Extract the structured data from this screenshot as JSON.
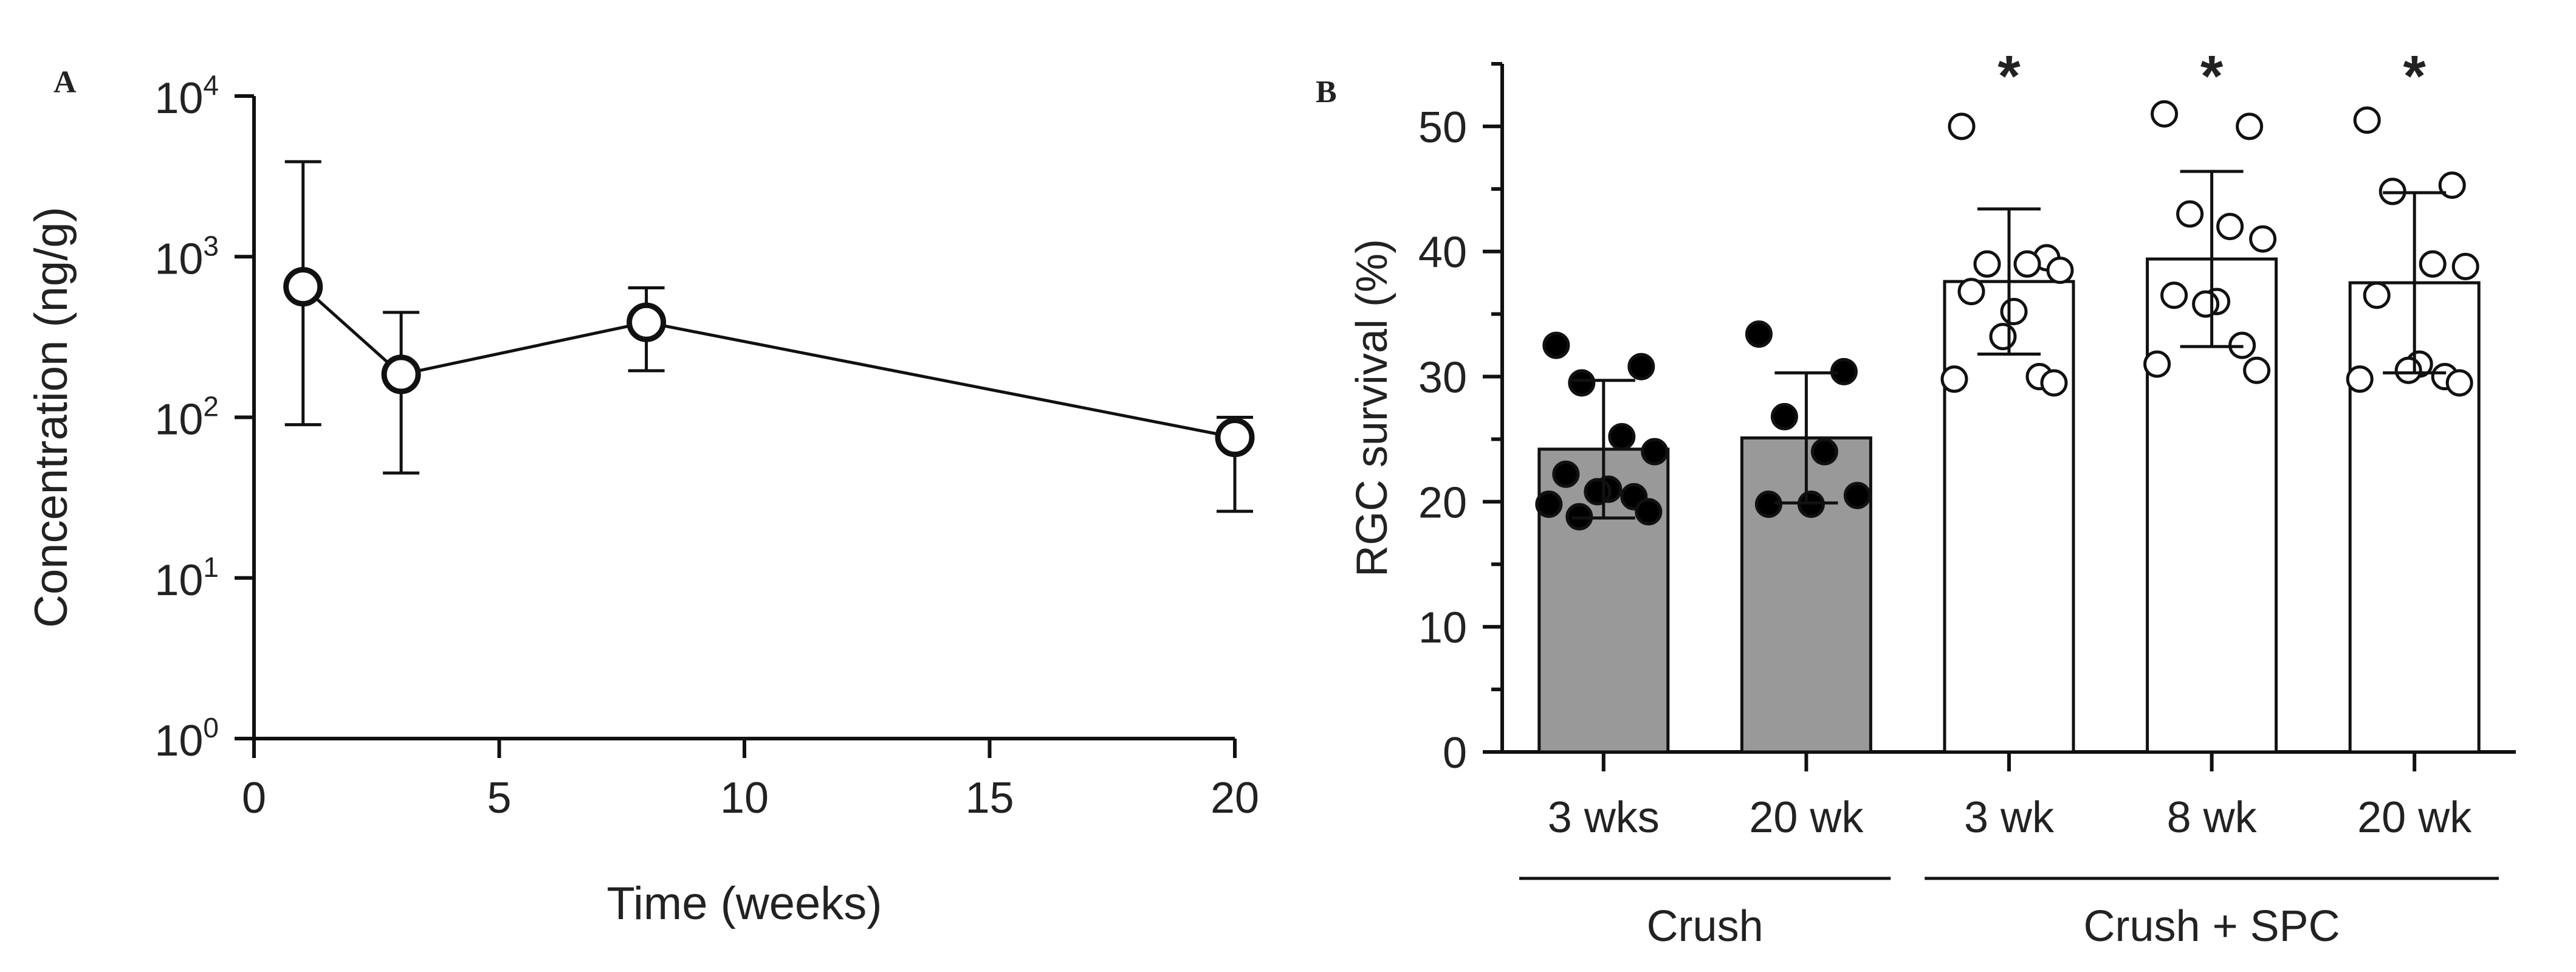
{
  "colors": {
    "axis": "#111111",
    "text": "#222222",
    "filled_bar": "#999999",
    "open_bar": "#ffffff",
    "point_filled": "#000000",
    "point_open": "#ffffff"
  },
  "chart_data": [
    {
      "panel": "A",
      "type": "line",
      "title": "",
      "xlabel": "Time (weeks)",
      "ylabel": "Concentration (ng/g)",
      "yscale": "log",
      "xlim": [
        0,
        20
      ],
      "ylim": [
        1,
        10000
      ],
      "x_ticks": [
        0,
        5,
        10,
        15,
        20
      ],
      "x_tick_labels": [
        "0",
        "5",
        "10",
        "15",
        "20"
      ],
      "y_ticks": [
        1,
        10,
        100,
        1000,
        10000
      ],
      "y_tick_labels": [
        {
          "base": "10",
          "exp": "0"
        },
        {
          "base": "10",
          "exp": "1"
        },
        {
          "base": "10",
          "exp": "2"
        },
        {
          "base": "10",
          "exp": "3"
        },
        {
          "base": "10",
          "exp": "4"
        }
      ],
      "grid": false,
      "series": [
        {
          "name": "Concentration",
          "marker": "open-circle",
          "x": [
            1,
            3,
            8,
            20
          ],
          "y": [
            650,
            185,
            390,
            75
          ],
          "err_low": [
            90,
            45,
            195,
            26
          ],
          "err_high": [
            3900,
            450,
            640,
            100
          ]
        }
      ]
    },
    {
      "panel": "B",
      "type": "bar",
      "title": "",
      "xlabel": "",
      "ylabel": "RGC survival (%)",
      "ylim": [
        0,
        55
      ],
      "y_ticks": [
        0,
        10,
        20,
        30,
        40,
        50
      ],
      "y_tick_labels": [
        "0",
        "10",
        "20",
        "30",
        "40",
        "50"
      ],
      "grid": false,
      "categories": [
        "3 wks",
        "20 wk",
        "3 wk",
        "8 wk",
        "20 wk"
      ],
      "groups": [
        {
          "label": "Crush",
          "categories": [
            0,
            1
          ]
        },
        {
          "label": "Crush + SPC",
          "categories": [
            2,
            3,
            4
          ]
        }
      ],
      "values": [
        24.2,
        25.1,
        37.6,
        39.4,
        37.5
      ],
      "sd": [
        5.5,
        5.2,
        5.8,
        7.0,
        7.2
      ],
      "fill": [
        "filled",
        "filled",
        "open",
        "open",
        "open"
      ],
      "significance": [
        "",
        "",
        "*",
        "*",
        "*"
      ],
      "points": [
        [
          32.5,
          30.8,
          29.5,
          25.2,
          24.0,
          22.2,
          21.0,
          20.8,
          20.4,
          19.8,
          19.2,
          18.8
        ],
        [
          33.4,
          30.4,
          26.8,
          24.0,
          20.5,
          19.8,
          19.8
        ],
        [
          50.0,
          39.5,
          39.0,
          39.0,
          38.5,
          36.8,
          35.2,
          33.2,
          30.0,
          29.8,
          29.5
        ],
        [
          51.0,
          50.0,
          43.0,
          42.0,
          41.0,
          36.5,
          36.0,
          35.8,
          32.5,
          31.0,
          30.5
        ],
        [
          50.5,
          45.3,
          44.8,
          39.0,
          38.8,
          36.5,
          31.0,
          30.5,
          30.0,
          29.8,
          29.5
        ]
      ]
    }
  ]
}
